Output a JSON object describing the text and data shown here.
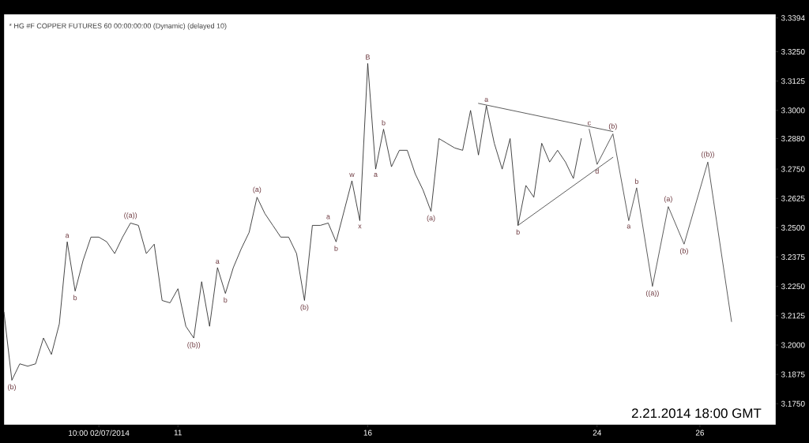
{
  "chart_data": {
    "type": "line",
    "title": "* HG #F  COPPER FUTURES  60  00:00:00:00 (Dynamic) (delayed 10)",
    "categories": [
      null,
      null,
      null,
      null,
      null,
      null,
      null,
      null,
      null,
      null,
      null,
      null,
      "10:00 02/07/2014",
      null,
      null,
      null,
      null,
      null,
      null,
      null,
      null,
      null,
      "11",
      null,
      null,
      null,
      null,
      null,
      null,
      null,
      null,
      null,
      null,
      null,
      null,
      null,
      null,
      null,
      null,
      null,
      null,
      null,
      null,
      null,
      null,
      null,
      "16",
      null,
      null,
      null,
      null,
      null,
      null,
      null,
      null,
      null,
      null,
      null,
      null,
      null,
      null,
      null,
      null,
      null,
      null,
      null,
      null,
      null,
      null,
      null,
      null,
      null,
      null,
      null,
      null,
      "24",
      null,
      null,
      null,
      null,
      null,
      null,
      null,
      null,
      null,
      null,
      null,
      null,
      "26",
      null,
      null,
      null,
      null,
      null,
      null,
      null,
      null,
      null
    ],
    "ylim": [
      3.166,
      3.341
    ],
    "yticks": [
      {
        "value": 3.175,
        "label": "3.1750"
      },
      {
        "value": 3.1875,
        "label": "3.1875"
      },
      {
        "value": 3.2,
        "label": "3.2000"
      },
      {
        "value": 3.2125,
        "label": "3.2125"
      },
      {
        "value": 3.225,
        "label": "3.2250"
      },
      {
        "value": 3.2375,
        "label": "3.2375"
      },
      {
        "value": 3.25,
        "label": "3.2500"
      },
      {
        "value": 3.2625,
        "label": "3.2625"
      },
      {
        "value": 3.275,
        "label": "3.2750"
      },
      {
        "value": 3.288,
        "label": "3.2880"
      },
      {
        "value": 3.3,
        "label": "3.3000"
      },
      {
        "value": 3.3125,
        "label": "3.3125"
      },
      {
        "value": 3.325,
        "label": "3.3250"
      },
      {
        "value": 3.3394,
        "label": "3.3394"
      }
    ],
    "series": [
      {
        "color": "#1a1a1a",
        "values": [
          3.214,
          3.185,
          3.192,
          3.191,
          3.192,
          3.203,
          3.196,
          3.209,
          3.244,
          3.223,
          3.236,
          3.246,
          3.246,
          3.244,
          3.239,
          3.246,
          3.252,
          3.251,
          3.239,
          3.243,
          3.219,
          3.218,
          3.224,
          3.208,
          3.203,
          3.227,
          3.208,
          3.233,
          3.222,
          3.233,
          3.241,
          3.248,
          3.263,
          3.256,
          3.251,
          3.246,
          3.246,
          3.239,
          3.219,
          3.251,
          3.251,
          3.252,
          3.244,
          3.257,
          3.27,
          3.253,
          3.32,
          3.275,
          3.292,
          3.276,
          3.283,
          3.283,
          3.273,
          3.266,
          3.257,
          3.288,
          3.286,
          3.284,
          3.283,
          3.3,
          3.281,
          3.302,
          3.286,
          3.275,
          3.288,
          3.251,
          3.268,
          3.263,
          3.286,
          3.278,
          3.283,
          3.278,
          3.271,
          3.288,
          null,
          null,
          null,
          null,
          null,
          null,
          null,
          null,
          null,
          null,
          null,
          null,
          null,
          null,
          null,
          null,
          null,
          null,
          null,
          null,
          null,
          null,
          null,
          null
        ],
        "value_labels": [
          null,
          "(b)",
          null,
          null,
          null,
          null,
          null,
          null,
          "a",
          "b",
          null,
          null,
          null,
          null,
          null,
          null,
          "((a))",
          null,
          null,
          null,
          null,
          null,
          null,
          null,
          "((b))",
          null,
          null,
          "a",
          "b",
          null,
          null,
          null,
          "(a)",
          null,
          null,
          null,
          null,
          null,
          "(b)",
          null,
          null,
          "a",
          "b",
          null,
          "w",
          "x",
          "B",
          "a",
          "b",
          null,
          null,
          null,
          null,
          null,
          "(a)",
          null,
          null,
          null,
          null,
          null,
          null,
          "a",
          null,
          null,
          null,
          "b",
          null,
          null,
          null,
          null,
          null,
          null,
          null,
          null,
          null,
          null,
          null,
          null,
          null,
          null,
          null,
          null,
          null,
          null,
          null,
          null,
          null,
          null,
          null,
          null,
          null,
          null,
          null,
          null,
          null,
          null,
          null,
          null
        ]
      },
      {
        "color": "#333333",
        "values": [
          null,
          null,
          null,
          null,
          null,
          null,
          null,
          null,
          null,
          null,
          null,
          null,
          null,
          null,
          null,
          null,
          null,
          null,
          null,
          null,
          null,
          null,
          null,
          null,
          null,
          null,
          null,
          null,
          null,
          null,
          null,
          null,
          null,
          null,
          null,
          null,
          null,
          null,
          null,
          null,
          null,
          null,
          null,
          null,
          null,
          null,
          null,
          null,
          null,
          null,
          null,
          null,
          null,
          null,
          null,
          null,
          null,
          null,
          null,
          null,
          null,
          null,
          null,
          null,
          null,
          null,
          null,
          null,
          null,
          null,
          null,
          null,
          null,
          null,
          3.292,
          3.277,
          null,
          3.29,
          null,
          3.253,
          3.267,
          null,
          3.225,
          null,
          3.259,
          null,
          3.243,
          null,
          null,
          3.278,
          null,
          null,
          3.21,
          null,
          null,
          null,
          null,
          null
        ],
        "value_labels": [
          null,
          null,
          null,
          null,
          null,
          null,
          null,
          null,
          null,
          null,
          null,
          null,
          null,
          null,
          null,
          null,
          null,
          null,
          null,
          null,
          null,
          null,
          null,
          null,
          null,
          null,
          null,
          null,
          null,
          null,
          null,
          null,
          null,
          null,
          null,
          null,
          null,
          null,
          null,
          null,
          null,
          null,
          null,
          null,
          null,
          null,
          null,
          null,
          null,
          null,
          null,
          null,
          null,
          null,
          null,
          null,
          null,
          null,
          null,
          null,
          null,
          null,
          null,
          null,
          null,
          null,
          null,
          null,
          null,
          null,
          null,
          null,
          null,
          null,
          "c",
          "d",
          null,
          "(b)",
          null,
          "a",
          "b",
          null,
          "((a))",
          null,
          "(a)",
          null,
          "(b)",
          null,
          null,
          "((b))",
          null,
          null,
          null,
          null,
          null,
          null,
          null,
          null
        ]
      },
      {
        "color": "#333333",
        "values": [
          null,
          null,
          null,
          null,
          null,
          null,
          null,
          null,
          null,
          null,
          null,
          null,
          null,
          null,
          null,
          null,
          null,
          null,
          null,
          null,
          null,
          null,
          null,
          null,
          null,
          null,
          null,
          null,
          null,
          null,
          null,
          null,
          null,
          null,
          null,
          null,
          null,
          null,
          null,
          null,
          null,
          null,
          null,
          null,
          null,
          null,
          null,
          null,
          null,
          null,
          null,
          null,
          null,
          null,
          null,
          null,
          null,
          null,
          null,
          null,
          3.303,
          null,
          null,
          null,
          null,
          null,
          null,
          null,
          null,
          null,
          null,
          null,
          null,
          null,
          null,
          null,
          null,
          3.291,
          null,
          null,
          null,
          null,
          null,
          null,
          null,
          null,
          null,
          null,
          null,
          null,
          null,
          null,
          null,
          null,
          null,
          null,
          null,
          null
        ]
      },
      {
        "color": "#333333",
        "values": [
          null,
          null,
          null,
          null,
          null,
          null,
          null,
          null,
          null,
          null,
          null,
          null,
          null,
          null,
          null,
          null,
          null,
          null,
          null,
          null,
          null,
          null,
          null,
          null,
          null,
          null,
          null,
          null,
          null,
          null,
          null,
          null,
          null,
          null,
          null,
          null,
          null,
          null,
          null,
          null,
          null,
          null,
          null,
          null,
          null,
          null,
          null,
          null,
          null,
          null,
          null,
          null,
          null,
          null,
          null,
          null,
          null,
          null,
          null,
          null,
          null,
          null,
          null,
          null,
          null,
          3.251,
          null,
          null,
          null,
          null,
          null,
          null,
          null,
          null,
          null,
          null,
          null,
          3.28,
          null,
          null,
          null,
          null,
          null,
          null,
          null,
          null,
          null,
          null,
          null,
          null,
          null,
          null,
          null,
          null,
          null,
          null,
          null,
          null
        ]
      }
    ],
    "annotations": [
      "2.21.2014 18:00 GMT"
    ]
  }
}
